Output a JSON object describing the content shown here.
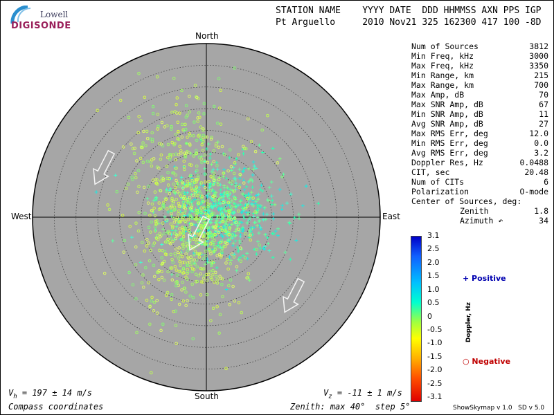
{
  "header": {
    "line1": "STATION NAME    YYYY DATE  DDD HHMMSS AXN PPS IGP",
    "line2": "Pt Arguello     2010 Nov21 325 162300 417 100 -8D"
  },
  "logo": {
    "lowell": "Lowell",
    "digisonde": "DIGISONDE"
  },
  "stats": [
    {
      "label": "Num of Sources",
      "value": "3812"
    },
    {
      "label": "Min Freq, kHz",
      "value": "3000"
    },
    {
      "label": "Max Freq, kHz",
      "value": "3350"
    },
    {
      "label": "Min Range, km",
      "value": "215"
    },
    {
      "label": "Max Range, km",
      "value": "700"
    },
    {
      "label": "Max Amp, dB",
      "value": "70"
    },
    {
      "label": "Max SNR Amp, dB",
      "value": "67"
    },
    {
      "label": "Min SNR Amp, dB",
      "value": "11"
    },
    {
      "label": "Avg SNR Amp, dB",
      "value": "27"
    },
    {
      "label": "Max RMS Err, deg",
      "value": "12.0"
    },
    {
      "label": "Min RMS Err, deg",
      "value": "0.0"
    },
    {
      "label": "Avg RMS Err, deg",
      "value": "3.2"
    },
    {
      "label": "Doppler Res, Hz",
      "value": "0.0488"
    },
    {
      "label": "CIT, sec",
      "value": "20.48"
    },
    {
      "label": "Num of CITs",
      "value": "6"
    },
    {
      "label": "Polarization",
      "value": "O-mode"
    },
    {
      "label": "Center of Sources, deg:",
      "value": ""
    }
  ],
  "center_sources": [
    {
      "label": "Zenith",
      "value": "1.8"
    },
    {
      "label": "Azimuth ↶",
      "value": "34"
    }
  ],
  "directions": {
    "north": "North",
    "south": "South",
    "west": "West",
    "east": "East"
  },
  "readouts": {
    "vh_symbol": "V",
    "vh_sub": "h",
    "vh_text": " = 197 ± 14 m/s",
    "vz_symbol": "V",
    "vz_sub": "z",
    "vz_text": " = -11 ± 1 m/s",
    "coords": "Compass coordinates",
    "zenith": "Zenith: max 40°  step 5°",
    "version": "ShowSkymap v 1.0   SD v 5.0"
  },
  "colorbar": {
    "title": "Doppler, Hz",
    "ticks": [
      "3.1",
      "2.5",
      "2.0",
      "1.5",
      "1.0",
      "0.5",
      "0",
      "-0.5",
      "-1.0",
      "-1.5",
      "-2.0",
      "-2.5",
      "-3.1"
    ],
    "positive_label": "+ Positive",
    "negative_label": "○ Negative"
  },
  "colors": {
    "disk": "#a6a6a6",
    "positive": "#0000b0",
    "negative": "#c00000"
  },
  "chart_data": {
    "type": "scatter",
    "projection": "polar-skymap",
    "zenith_max_deg": 40,
    "zenith_step_deg": 5,
    "velocity_arrows_azimuth_deg": [
      207
    ],
    "clusters": [
      {
        "name": "",
        "sign": "positive",
        "center_zenith_deg": 3,
        "center_azimuth_deg": 70,
        "spread_deg": 7,
        "count": 650
      },
      {
        "name": "",
        "sign": "negative",
        "center_zenith_deg": 6,
        "center_azimuth_deg": 215,
        "spread_deg": 8,
        "count": 500
      },
      {
        "name": "",
        "sign": "negative",
        "center_zenith_deg": 14,
        "center_azimuth_deg": 340,
        "spread_deg": 9,
        "count": 280
      }
    ]
  }
}
